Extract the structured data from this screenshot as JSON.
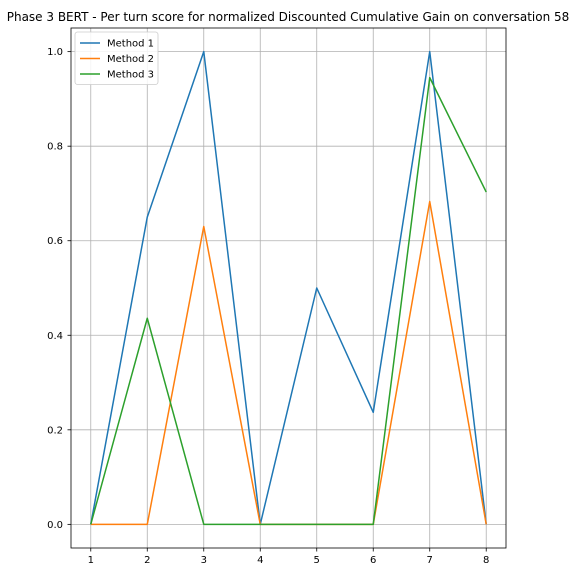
{
  "chart_data": {
    "type": "line",
    "title": "Phase 3 BERT - Per turn score for normalized Discounted Cumulative Gain on conversation 58",
    "xlabel": "",
    "ylabel": "",
    "x": [
      1,
      2,
      3,
      4,
      5,
      6,
      7,
      8
    ],
    "xticks": [
      "1",
      "2",
      "3",
      "4",
      "5",
      "6",
      "7",
      "8"
    ],
    "yticks": [
      "0.0",
      "0.2",
      "0.4",
      "0.6",
      "0.8",
      "1.0"
    ],
    "xlim": [
      0.65,
      8.35
    ],
    "ylim": [
      -0.05,
      1.05
    ],
    "grid": true,
    "legend_position": "top-left",
    "series": [
      {
        "name": "Method 1",
        "color": "#1f77b4",
        "values": [
          0.0,
          0.65,
          1.0,
          0.0,
          0.5,
          0.237,
          1.0,
          0.0
        ]
      },
      {
        "name": "Method 2",
        "color": "#ff7f0e",
        "values": [
          0.0,
          0.0,
          0.63,
          0.0,
          0.0,
          0.0,
          0.683,
          0.0
        ]
      },
      {
        "name": "Method 3",
        "color": "#2ca02c",
        "values": [
          0.0,
          0.436,
          0.0,
          0.0,
          0.0,
          0.0,
          0.945,
          0.703
        ]
      }
    ]
  }
}
